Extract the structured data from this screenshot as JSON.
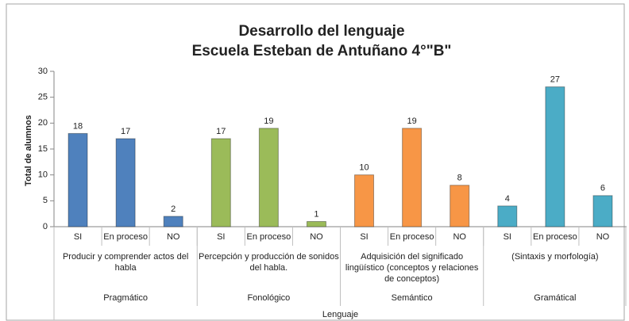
{
  "chart_data": {
    "type": "bar",
    "title": "Desarrollo del lenguaje",
    "subtitle": "Escuela Esteban de Antuñano 4°\"B\"",
    "y_label": "Total de alumnos",
    "top_label": "Lenguaje",
    "ylim": [
      0,
      30
    ],
    "yticks": [
      0,
      5,
      10,
      15,
      20,
      25,
      30
    ],
    "grid": false,
    "groups": [
      {
        "label": "Pragmático",
        "sublabel": "Producir y comprender actos del habla",
        "color": "#4f81bd",
        "categories": [
          "SI",
          "En proceso",
          "NO"
        ],
        "values": [
          18,
          17,
          2
        ]
      },
      {
        "label": "Fonológico",
        "sublabel": "Percepción y producción de sonidos del habla.",
        "color": "#9bbb59",
        "categories": [
          "SI",
          "En proceso",
          "NO"
        ],
        "values": [
          17,
          19,
          1
        ]
      },
      {
        "label": "Semántico",
        "sublabel": "Adquisición del significado lingüístico (conceptos y relaciones de conceptos)",
        "color": "#f79646",
        "categories": [
          "SI",
          "En proceso",
          "NO"
        ],
        "values": [
          10,
          19,
          8
        ]
      },
      {
        "label": "Gramátical",
        "sublabel": "(Sintaxis y morfología)",
        "color": "#4bacc6",
        "categories": [
          "SI",
          "En proceso",
          "NO"
        ],
        "values": [
          4,
          27,
          6
        ]
      }
    ]
  }
}
